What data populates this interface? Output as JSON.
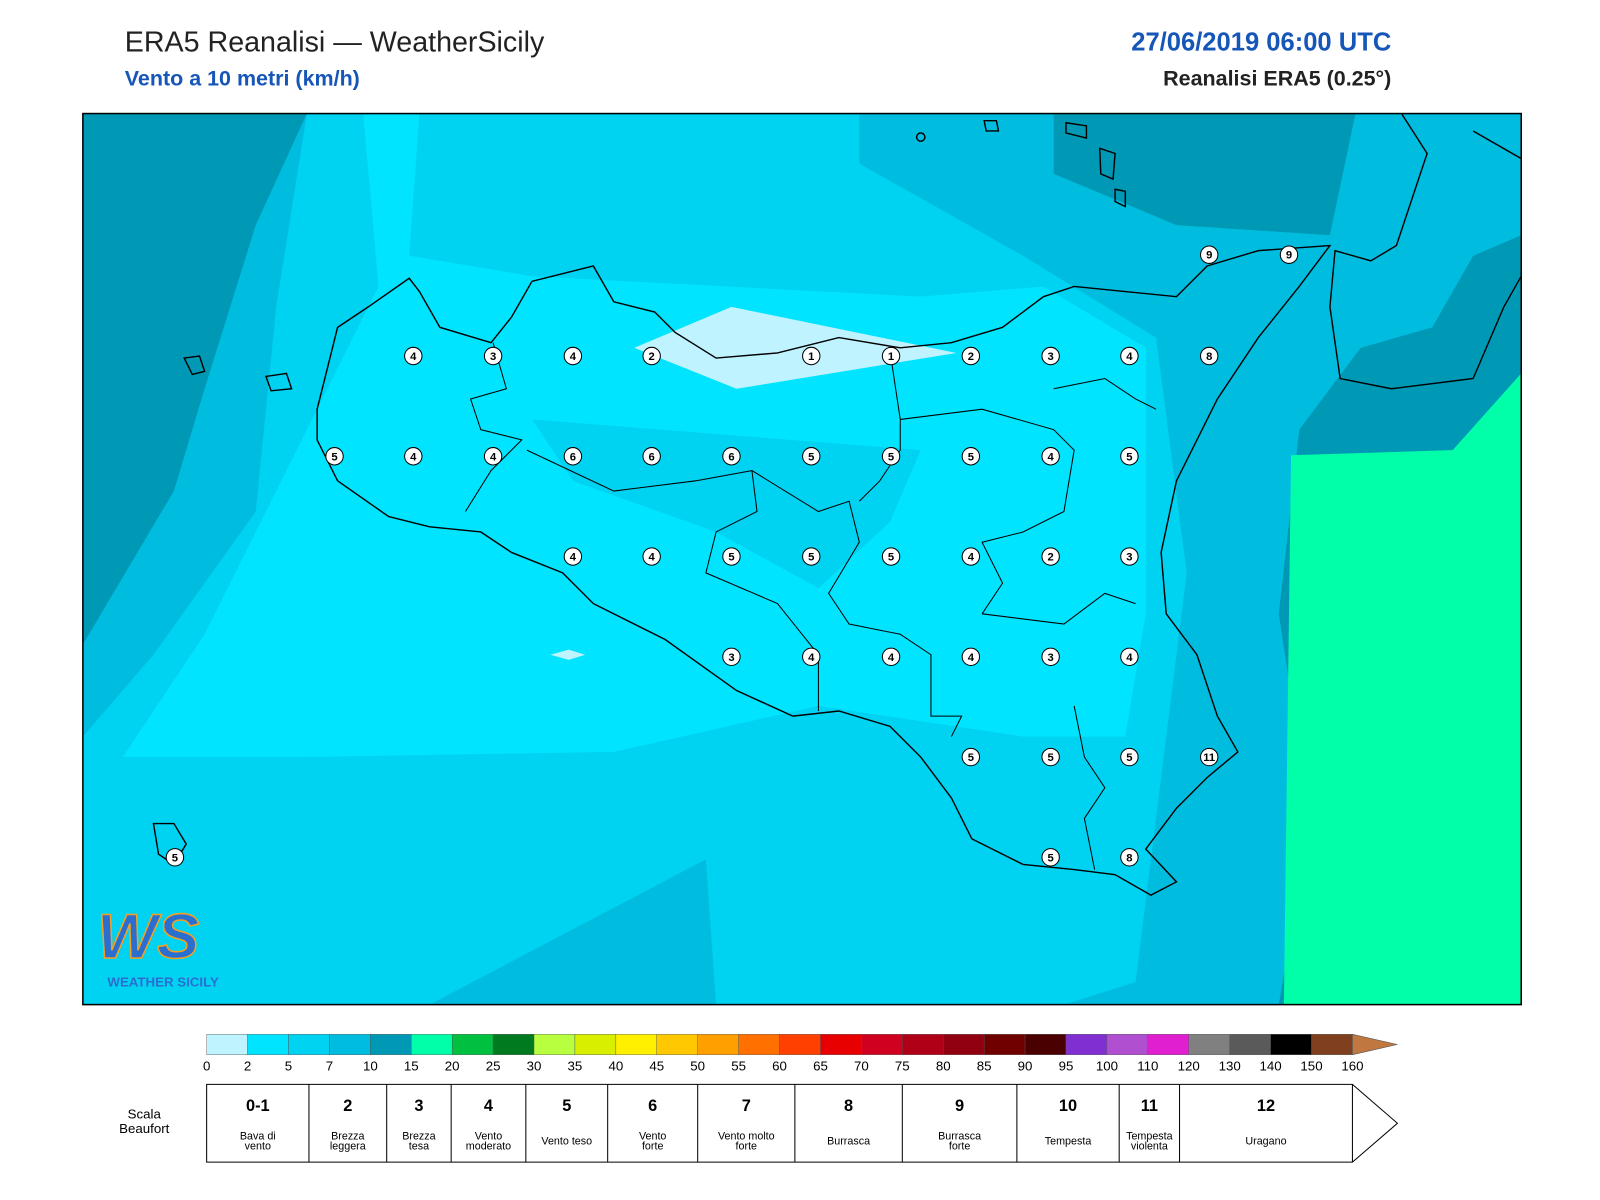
{
  "header": {
    "title": "ERA5 Reanalisi — WeatherSicily",
    "subtitle": "Vento a 10 metri (km/h)",
    "datetime": "27/06/2019 06:00 UTC",
    "source": "Reanalisi ERA5 (0.25°)"
  },
  "map": {
    "stations": [
      9,
      9,
      4,
      3,
      4,
      2,
      1,
      1,
      2,
      3,
      4,
      8,
      5,
      4,
      4,
      6,
      6,
      6,
      5,
      5,
      5,
      4,
      5,
      4,
      4,
      5,
      5,
      5,
      4,
      2,
      3,
      3,
      4,
      4,
      4,
      3,
      4,
      5,
      5,
      5,
      11,
      5,
      5,
      8
    ]
  },
  "logo": {
    "mark": "WS",
    "name": "WEATHER SICILY"
  },
  "colorbar": {
    "ticks": [
      0,
      2,
      5,
      7,
      10,
      15,
      20,
      25,
      30,
      35,
      40,
      45,
      50,
      55,
      60,
      65,
      70,
      75,
      80,
      85,
      90,
      95,
      100,
      110,
      120,
      130,
      140,
      150,
      160
    ],
    "colors": [
      "#bff3ff",
      "#00e4ff",
      "#00d2f2",
      "#00bde0",
      "#0099b5",
      "#00ffa8",
      "#00c040",
      "#007a1e",
      "#b8ff40",
      "#d8f000",
      "#fff000",
      "#ffc800",
      "#ffa000",
      "#ff7000",
      "#ff4000",
      "#e80000",
      "#d00020",
      "#b00018",
      "#900010",
      "#700000",
      "#4a0000",
      "#8030d0",
      "#b050d0",
      "#e020d0",
      "#808080",
      "#5a5a5a",
      "#000000",
      "#804020",
      "#c07840"
    ]
  },
  "beaufort": {
    "title": [
      "Scala",
      "Beaufort"
    ],
    "levels": [
      {
        "force": "0-1",
        "desc": [
          "Bava di",
          "vento"
        ]
      },
      {
        "force": "2",
        "desc": [
          "Brezza",
          "leggera"
        ]
      },
      {
        "force": "3",
        "desc": [
          "Brezza",
          "tesa"
        ]
      },
      {
        "force": "4",
        "desc": [
          "Vento",
          "moderato"
        ]
      },
      {
        "force": "5",
        "desc": [
          "Vento teso"
        ]
      },
      {
        "force": "6",
        "desc": [
          "Vento",
          "forte"
        ]
      },
      {
        "force": "7",
        "desc": [
          "Vento molto",
          "forte"
        ]
      },
      {
        "force": "8",
        "desc": [
          "Burrasca"
        ]
      },
      {
        "force": "9",
        "desc": [
          "Burrasca",
          "forte"
        ]
      },
      {
        "force": "10",
        "desc": [
          "Tempesta"
        ]
      },
      {
        "force": "11",
        "desc": [
          "Tempesta",
          "violenta"
        ]
      },
      {
        "force": "12",
        "desc": [
          "Uragano"
        ]
      }
    ]
  }
}
